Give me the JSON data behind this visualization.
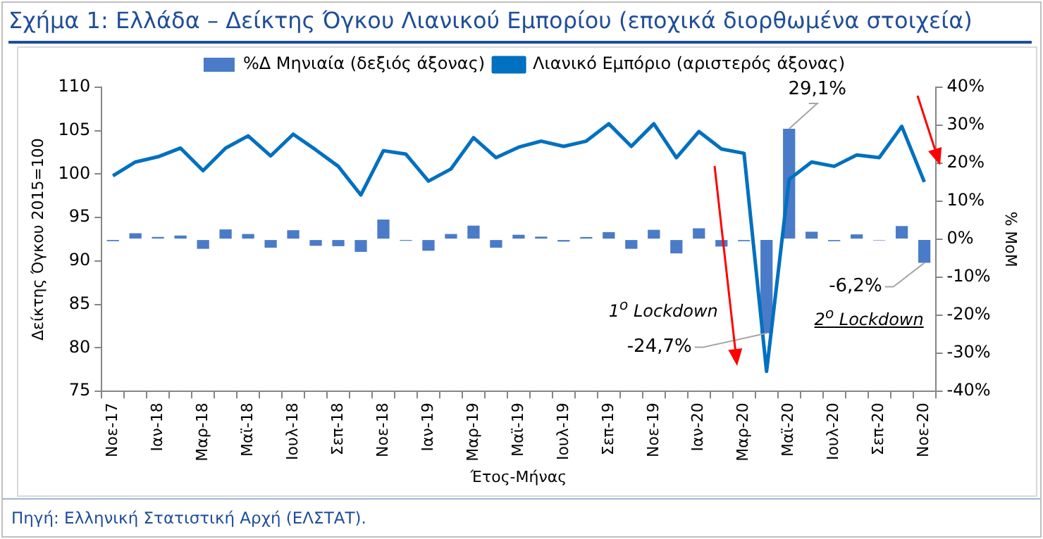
{
  "chart_data": {
    "type": "bar",
    "title": "Σχήμα 1: Ελλάδα – Δείκτης Όγκου Λιανικού Εμπορίου (εποχικά διορθωμένα στοιχεία)",
    "xlabel": "Έτος-Μήνας",
    "ylabel": "Δείκτης Όγκου 2015=100",
    "y2label": "% MoM",
    "categories": [
      "Νοε-17",
      null,
      "Ιαν-18",
      null,
      "Μαρ-18",
      null,
      "Μαϊ-18",
      null,
      "Ιουλ-18",
      null,
      "Σεπ-18",
      null,
      "Νοε-18",
      null,
      "Ιαν-19",
      null,
      "Μαρ-19",
      null,
      "Μαϊ-19",
      null,
      "Ιουλ-19",
      null,
      "Σεπ-19",
      null,
      "Νοε-19",
      null,
      "Ιαν-20",
      null,
      "Μαρ-20",
      null,
      "Μαϊ-20",
      null,
      "Ιουλ-20",
      null,
      "Σεπ-20",
      null,
      "Νοε-20"
    ],
    "series": [
      {
        "name": "%Δ Μηνιαία (δεξιός άξονας)",
        "axis": "y2",
        "color": "#4a7bc8",
        "values": [
          -0.5,
          1.6,
          0.6,
          1.0,
          -2.5,
          2.6,
          1.4,
          -2.2,
          2.4,
          -1.7,
          -1.8,
          -3.3,
          5.2,
          -0.4,
          -3.0,
          1.4,
          3.6,
          -2.2,
          1.2,
          0.7,
          -0.6,
          0.6,
          1.9,
          -2.5,
          2.5,
          -3.7,
          2.9,
          -1.9,
          -0.5,
          -24.7,
          29.1,
          2.0,
          -0.5,
          1.3,
          -0.3,
          3.5,
          -6.2
        ],
        "value_labels": [
          null,
          null,
          null,
          null,
          null,
          null,
          null,
          null,
          null,
          null,
          null,
          null,
          null,
          null,
          null,
          null,
          null,
          null,
          null,
          null,
          null,
          null,
          null,
          null,
          null,
          null,
          null,
          null,
          null,
          "-24,7%",
          "29,1%",
          null,
          null,
          null,
          null,
          null,
          "-6,2%"
        ]
      },
      {
        "name": "Λιανικό Εμπόριο (αριστερός άξονας)",
        "type": "line",
        "color": "#0070c0",
        "values": [
          99.8,
          101.4,
          102.0,
          103.0,
          100.4,
          103.0,
          104.4,
          102.1,
          104.6,
          102.8,
          100.9,
          97.6,
          102.7,
          102.3,
          99.2,
          100.6,
          104.2,
          101.9,
          103.1,
          103.8,
          103.2,
          103.8,
          105.8,
          103.2,
          105.8,
          101.9,
          104.9,
          102.9,
          102.4,
          77.3,
          99.4,
          101.4,
          100.9,
          102.2,
          101.9,
          105.5,
          99.1
        ]
      }
    ],
    "ylim": [
      75,
      110
    ],
    "yticks": [
      75,
      80,
      85,
      90,
      95,
      100,
      105,
      110
    ],
    "y2lim": [
      -40,
      40
    ],
    "y2ticks": [
      {
        "value": -40,
        "label": "-40%"
      },
      {
        "value": -30,
        "label": "-30%"
      },
      {
        "value": -20,
        "label": "-20%"
      },
      {
        "value": -10,
        "label": "-10%"
      },
      {
        "value": 0,
        "label": "0%"
      },
      {
        "value": 10,
        "label": "10%"
      },
      {
        "value": 20,
        "label": "20%"
      },
      {
        "value": 30,
        "label": "30%"
      },
      {
        "value": 40,
        "label": "40%"
      }
    ],
    "grid": false,
    "legend": "top",
    "marker": "none",
    "line_style": "solid",
    "annotations": [
      "1$^{ο}$ Lockdown",
      "2$^{ο}$ Lockdown",
      "Πηγή: Ελληνική Στατιστική Αρχή (ΕΛΣΤΑΤ)."
    ]
  }
}
